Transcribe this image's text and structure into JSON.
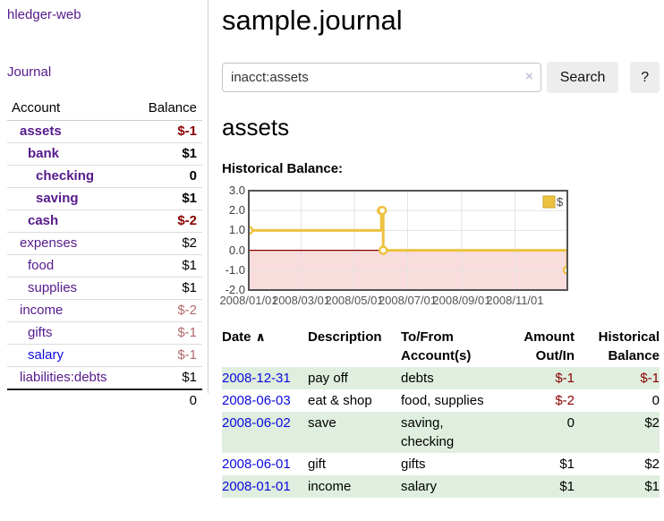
{
  "sidebar": {
    "app_title": "hledger-web",
    "journal_link": "Journal",
    "table_header": {
      "account": "Account",
      "balance": "Balance"
    },
    "accounts": [
      {
        "name": "assets",
        "indent": 1,
        "bold": true,
        "balance": "$-1",
        "balance_class": "neg bold"
      },
      {
        "name": "bank",
        "indent": 2,
        "bold": true,
        "balance": "$1",
        "balance_class": "bold"
      },
      {
        "name": "checking",
        "indent": 3,
        "bold": true,
        "balance": "0",
        "balance_class": "bold"
      },
      {
        "name": "saving",
        "indent": 3,
        "bold": true,
        "balance": "$1",
        "balance_class": "bold"
      },
      {
        "name": "cash",
        "indent": 2,
        "bold": true,
        "balance": "$-2",
        "balance_class": "neg bold"
      },
      {
        "name": "expenses",
        "indent": 1,
        "bold": false,
        "balance": "$2",
        "balance_class": ""
      },
      {
        "name": "food",
        "indent": 2,
        "bold": false,
        "balance": "$1",
        "balance_class": ""
      },
      {
        "name": "supplies",
        "indent": 2,
        "bold": false,
        "balance": "$1",
        "balance_class": ""
      },
      {
        "name": "income",
        "indent": 1,
        "bold": false,
        "balance": "$-2",
        "balance_class": "neg-light"
      },
      {
        "name": "gifts",
        "indent": 2,
        "bold": false,
        "balance": "$-1",
        "balance_class": "neg-light"
      },
      {
        "name": "salary",
        "indent": 2,
        "bold": false,
        "link_color": "blue",
        "balance": "$-1",
        "balance_class": "neg-light"
      },
      {
        "name": "liabilities:debts",
        "indent": 1,
        "bold": false,
        "balance": "$1",
        "balance_class": ""
      }
    ],
    "total_balance": "0"
  },
  "main": {
    "title": "sample.journal",
    "search": {
      "value": "inacct:assets",
      "clear_icon": "×",
      "button_label": "Search",
      "help_label": "?"
    },
    "account_heading": "assets",
    "section_label": "Historical Balance:"
  },
  "register": {
    "headers": {
      "date": "Date",
      "sort_icon": "∧",
      "description": "Description",
      "accounts": "To/From\nAccount(s)",
      "amount": "Amount\nOut/In",
      "balance": "Historical\nBalance"
    },
    "rows": [
      {
        "date": "2008-12-31",
        "description": "pay off",
        "accounts": "debts",
        "amount": "$-1",
        "amount_neg": true,
        "balance": "$-1",
        "balance_neg": true,
        "shaded": true
      },
      {
        "date": "2008-06-03",
        "description": "eat & shop",
        "accounts": "food, supplies",
        "amount": "$-2",
        "amount_neg": true,
        "balance": "0",
        "balance_neg": false,
        "shaded": false
      },
      {
        "date": "2008-06-02",
        "description": "save",
        "accounts": "saving,\nchecking",
        "amount": "0",
        "amount_neg": false,
        "balance": "$2",
        "balance_neg": false,
        "shaded": true
      },
      {
        "date": "2008-06-01",
        "description": "gift",
        "accounts": "gifts",
        "amount": "$1",
        "amount_neg": false,
        "balance": "$2",
        "balance_neg": false,
        "shaded": false
      },
      {
        "date": "2008-01-01",
        "description": "income",
        "accounts": "salary",
        "amount": "$1",
        "amount_neg": false,
        "balance": "$1",
        "balance_neg": false,
        "shaded": true
      }
    ]
  },
  "chart_data": {
    "type": "line",
    "title": "Historical Balance:",
    "steps": true,
    "series": [
      {
        "name": "$",
        "color": "#edc240",
        "points": [
          {
            "date": "2008-01-01",
            "day": 0,
            "value": 1
          },
          {
            "date": "2008-06-01",
            "day": 152,
            "value": 2
          },
          {
            "date": "2008-06-02",
            "day": 153,
            "value": 2
          },
          {
            "date": "2008-06-03",
            "day": 154,
            "value": 0
          },
          {
            "date": "2008-12-31",
            "day": 365,
            "value": -1
          }
        ]
      }
    ],
    "x_ticks": [
      {
        "label": "2008/01/01",
        "day": 0
      },
      {
        "label": "2008/03/01",
        "day": 60
      },
      {
        "label": "2008/05/01",
        "day": 121
      },
      {
        "label": "2008/07/01",
        "day": 182
      },
      {
        "label": "2008/09/01",
        "day": 244
      },
      {
        "label": "2008/11/01",
        "day": 305
      }
    ],
    "y_ticks": [
      3.0,
      2.0,
      1.0,
      0.0,
      -1.0,
      -2.0
    ],
    "ylim": [
      -2,
      3
    ],
    "xlim_days": [
      0,
      365
    ],
    "grid": true,
    "negative_region_color": "#f9dcdc",
    "zero_line_color": "#8b0000",
    "legend": {
      "label": "$",
      "position": "top-right"
    }
  },
  "colors": {
    "link_purple": "#551a8b",
    "link_blue": "#0b0bdd",
    "negative_bold": "#8b0000",
    "negative_light": "#b36a6a",
    "row_shade_green": "#dfeede",
    "series_yellow": "#edc240",
    "chart_border": "#545454",
    "grid_line": "#e3e3e3"
  }
}
